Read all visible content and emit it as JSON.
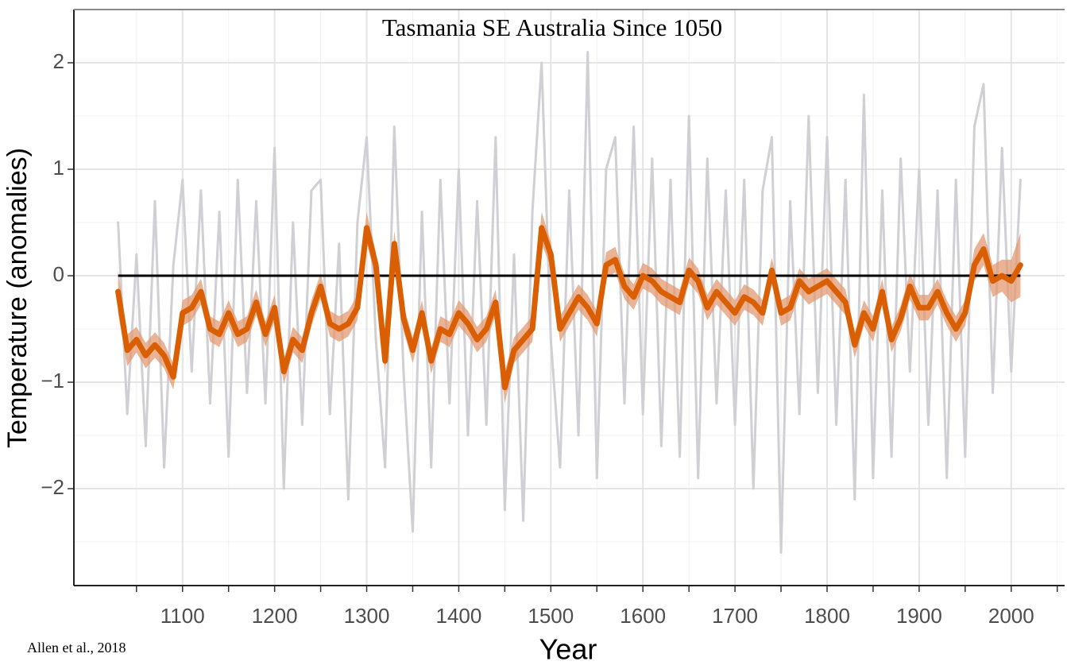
{
  "chart_data": {
    "type": "line",
    "title": "Tasmania SE Australia Since 1050",
    "xlabel": "Year",
    "ylabel": "Temperature (anomalies)",
    "source": "Allen et al., 2018",
    "x": [
      1030,
      1040,
      1050,
      1060,
      1070,
      1080,
      1090,
      1100,
      1110,
      1120,
      1130,
      1140,
      1150,
      1160,
      1170,
      1180,
      1190,
      1200,
      1210,
      1220,
      1230,
      1240,
      1250,
      1260,
      1270,
      1280,
      1290,
      1300,
      1310,
      1320,
      1330,
      1340,
      1350,
      1360,
      1370,
      1380,
      1390,
      1400,
      1410,
      1420,
      1430,
      1440,
      1450,
      1460,
      1470,
      1480,
      1490,
      1500,
      1510,
      1520,
      1530,
      1540,
      1550,
      1560,
      1570,
      1580,
      1590,
      1600,
      1610,
      1620,
      1630,
      1640,
      1650,
      1660,
      1670,
      1680,
      1690,
      1700,
      1710,
      1720,
      1730,
      1740,
      1750,
      1760,
      1770,
      1780,
      1790,
      1800,
      1810,
      1820,
      1830,
      1840,
      1850,
      1860,
      1870,
      1880,
      1890,
      1900,
      1910,
      1920,
      1930,
      1940,
      1950,
      1960,
      1970,
      1980,
      1990,
      2000,
      2010
    ],
    "series": [
      {
        "color": "#cfcfd4",
        "values": [
          0.5,
          -1.3,
          0.2,
          -1.6,
          0.7,
          -1.8,
          0.1,
          0.9,
          -0.9,
          0.8,
          -1.2,
          0.6,
          -1.7,
          0.9,
          -1.1,
          0.7,
          -1.2,
          1.2,
          -2.0,
          0.5,
          -1.4,
          0.8,
          0.9,
          -1.3,
          0.3,
          -2.1,
          0.5,
          1.3,
          -0.6,
          -1.8,
          1.4,
          -0.9,
          -2.4,
          0.6,
          -1.8,
          0.9,
          -1.2,
          1.0,
          -1.5,
          0.7,
          -1.4,
          1.3,
          -2.2,
          0.2,
          -2.3,
          0.6,
          2.0,
          -0.6,
          -1.8,
          0.8,
          -1.5,
          2.1,
          -1.9,
          1.0,
          1.3,
          -1.2,
          1.4,
          -1.3,
          1.1,
          -1.6,
          0.9,
          -1.7,
          1.5,
          -1.9,
          1.1,
          -1.2,
          0.8,
          -1.4,
          0.9,
          -2.0,
          0.8,
          1.3,
          -2.6,
          0.7,
          -1.3,
          1.5,
          -1.1,
          1.3,
          -1.4,
          0.9,
          -2.1,
          1.7,
          -1.9,
          0.8,
          -1.7,
          1.1,
          -0.9,
          1.0,
          -1.4,
          0.8,
          -1.9,
          0.9,
          -1.7,
          1.4,
          1.8,
          -1.1,
          1.2,
          -0.9,
          0.9
        ]
      },
      {
        "color": "#d95f02",
        "band_color": "#e39a72",
        "values": [
          -0.15,
          -0.7,
          -0.6,
          -0.75,
          -0.65,
          -0.75,
          -0.95,
          -0.35,
          -0.3,
          -0.15,
          -0.5,
          -0.55,
          -0.35,
          -0.55,
          -0.5,
          -0.25,
          -0.55,
          -0.3,
          -0.9,
          -0.6,
          -0.7,
          -0.35,
          -0.1,
          -0.45,
          -0.5,
          -0.45,
          -0.3,
          0.45,
          0.1,
          -0.8,
          0.3,
          -0.4,
          -0.7,
          -0.35,
          -0.8,
          -0.5,
          -0.55,
          -0.35,
          -0.45,
          -0.6,
          -0.5,
          -0.25,
          -1.05,
          -0.7,
          -0.6,
          -0.5,
          0.45,
          0.2,
          -0.5,
          -0.35,
          -0.2,
          -0.3,
          -0.45,
          0.1,
          0.15,
          -0.1,
          -0.2,
          0.0,
          -0.05,
          -0.15,
          -0.2,
          -0.25,
          0.05,
          -0.05,
          -0.3,
          -0.15,
          -0.25,
          -0.35,
          -0.2,
          -0.25,
          -0.35,
          0.05,
          -0.35,
          -0.3,
          -0.05,
          -0.15,
          -0.1,
          -0.05,
          -0.15,
          -0.25,
          -0.65,
          -0.35,
          -0.5,
          -0.15,
          -0.6,
          -0.4,
          -0.1,
          -0.3,
          -0.3,
          -0.15,
          -0.35,
          -0.5,
          -0.35,
          0.1,
          0.25,
          -0.05,
          0.0,
          -0.05,
          0.1
        ],
        "error": [
          0.2,
          0.15,
          0.12,
          0.12,
          0.12,
          0.12,
          0.12,
          0.12,
          0.12,
          0.12,
          0.12,
          0.12,
          0.12,
          0.12,
          0.12,
          0.12,
          0.12,
          0.12,
          0.12,
          0.12,
          0.12,
          0.12,
          0.12,
          0.12,
          0.12,
          0.12,
          0.12,
          0.15,
          0.12,
          0.12,
          0.12,
          0.12,
          0.12,
          0.12,
          0.12,
          0.12,
          0.12,
          0.12,
          0.12,
          0.12,
          0.12,
          0.12,
          0.15,
          0.12,
          0.12,
          0.12,
          0.15,
          0.12,
          0.12,
          0.12,
          0.12,
          0.12,
          0.12,
          0.12,
          0.12,
          0.12,
          0.12,
          0.12,
          0.12,
          0.12,
          0.12,
          0.12,
          0.12,
          0.12,
          0.12,
          0.12,
          0.12,
          0.12,
          0.12,
          0.12,
          0.12,
          0.12,
          0.12,
          0.12,
          0.12,
          0.12,
          0.12,
          0.12,
          0.12,
          0.12,
          0.12,
          0.12,
          0.12,
          0.12,
          0.12,
          0.12,
          0.12,
          0.12,
          0.12,
          0.12,
          0.12,
          0.12,
          0.12,
          0.15,
          0.15,
          0.15,
          0.15,
          0.2,
          0.3
        ]
      }
    ],
    "reference_line": {
      "y": 0,
      "color": "#000000"
    },
    "xlim": [
      982,
      2058
    ],
    "ylim": [
      -2.91,
      2.5
    ],
    "xticks": [
      1100,
      1200,
      1300,
      1400,
      1500,
      1600,
      1700,
      1800,
      1900,
      2000
    ],
    "xticks_minor": [
      1050,
      1150,
      1250,
      1350,
      1450,
      1550,
      1650,
      1750,
      1850,
      1950,
      2050
    ],
    "yticks": [
      {
        "value": -2,
        "label": "−2"
      },
      {
        "value": -1,
        "label": "−1"
      },
      0,
      1,
      2
    ],
    "yticks_minor": [
      -2.5,
      -1.5,
      -0.5,
      0.5,
      1.5
    ],
    "grid": true
  }
}
